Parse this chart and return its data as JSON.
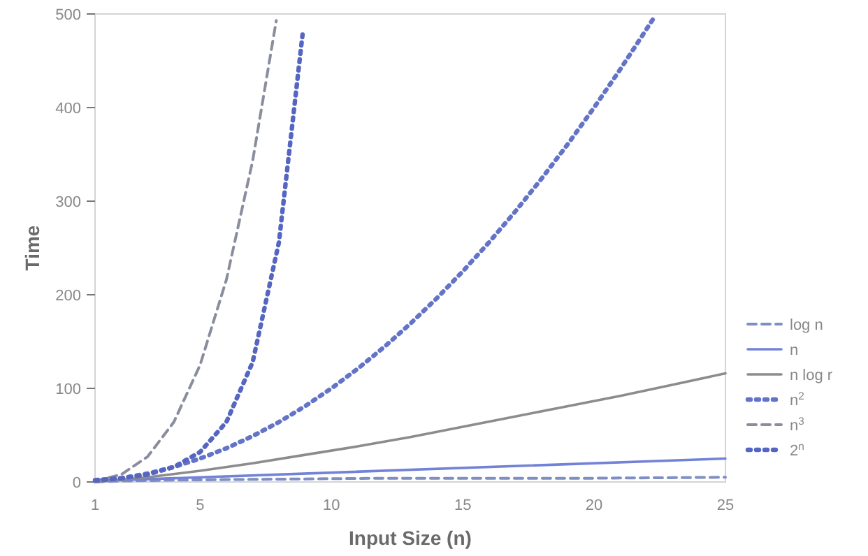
{
  "chart_data": {
    "type": "line",
    "xlabel": "Input Size (n)",
    "ylabel": "Time",
    "xlim": [
      1,
      25
    ],
    "ylim": [
      0,
      500
    ],
    "xticks": [
      1,
      5,
      10,
      15,
      20,
      25
    ],
    "yticks": [
      0,
      100,
      200,
      300,
      400,
      500
    ],
    "legend": "right",
    "grid": false,
    "marker": "none",
    "series": [
      {
        "name": "log n",
        "color": "#7f8fc4",
        "line_style": "dashed",
        "x": [
          1,
          2,
          4,
          8,
          12,
          16,
          20,
          25
        ],
        "values": [
          0,
          1,
          2,
          3,
          4,
          4,
          4,
          5
        ]
      },
      {
        "name": "n",
        "color": "#7282d6",
        "line_style": "solid",
        "x": [
          1,
          25
        ],
        "values": [
          1,
          25
        ]
      },
      {
        "name": "n log r",
        "color": "#8c8c8c",
        "line_style": "solid",
        "x": [
          1,
          3,
          5,
          7,
          9,
          11,
          13,
          15,
          17,
          19,
          21,
          23,
          25
        ],
        "values": [
          0,
          5,
          12,
          20,
          29,
          38,
          48,
          59,
          70,
          81,
          92,
          104,
          116
        ]
      },
      {
        "name": "n$^{2}$",
        "color": "#6373c8",
        "line_style": "dotted",
        "x": [
          1,
          2,
          3,
          4,
          5,
          6,
          7,
          8,
          9,
          10,
          11,
          12,
          13,
          14,
          15,
          16,
          17,
          18,
          19,
          20,
          21,
          22,
          22.3
        ],
        "values": [
          1,
          4,
          9,
          16,
          25,
          36,
          49,
          64,
          81,
          100,
          121,
          144,
          169,
          196,
          225,
          256,
          289,
          324,
          361,
          400,
          441,
          484,
          497
        ]
      },
      {
        "name": "n$^{3}$",
        "color": "#8a8d9e",
        "line_style": "dashed",
        "x": [
          1,
          2,
          3,
          4,
          5,
          6,
          7,
          7.9
        ],
        "values": [
          1,
          8,
          27,
          64,
          125,
          216,
          343,
          493
        ]
      },
      {
        "name": "2$^{n}$",
        "color": "#5565c2",
        "line_style": "dotted",
        "x": [
          1,
          2,
          3,
          4,
          5,
          6,
          7,
          8,
          8.9
        ],
        "values": [
          2,
          4,
          8,
          16,
          32,
          64,
          128,
          256,
          478
        ]
      }
    ]
  }
}
